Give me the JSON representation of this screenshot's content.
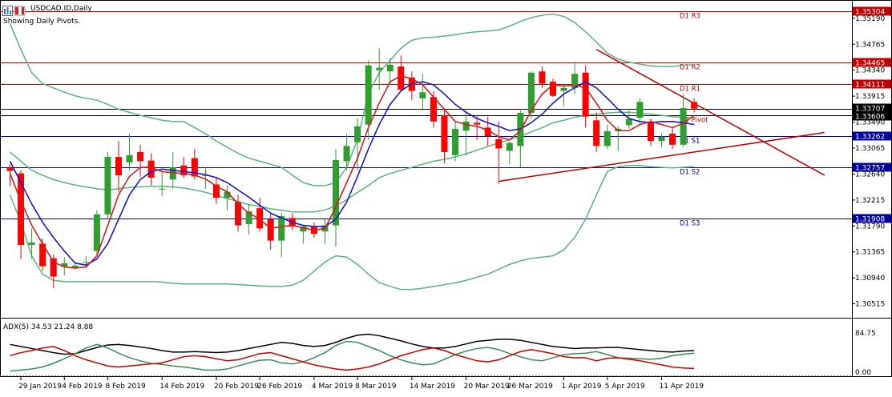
{
  "window": {
    "symbol_title": "USDCAD.ID,Daily",
    "pivot_note": "Showing Daily Pivots."
  },
  "colors": {
    "background": "#ffffff",
    "bull_candle": "#2e9e2e",
    "bear_candle": "#ff0000",
    "bollinger": "#5cb37d",
    "ma_fast": "#d21f1f",
    "ma_slow": "#1a1acc",
    "pivot_lines": "#c00000",
    "support_lines": "#0000a0",
    "trendline": "#c00000",
    "adx_main": "#000000",
    "adx_plus": "#3c8c5a",
    "adx_minus": "#cc0000"
  },
  "icons": [
    "chart-window-icon",
    "flag-icon"
  ],
  "price_axis": {
    "ticks": [
      "1.35190",
      "1.34765",
      "1.34340",
      "1.33915",
      "1.33490",
      "1.33065",
      "1.32640",
      "1.32215",
      "1.31790",
      "1.31365",
      "1.30940",
      "1.30515"
    ],
    "current_price_labels": [
      "1.33707",
      "1.33606"
    ]
  },
  "pivots": [
    {
      "name": "D1 R3",
      "price": 1.35304,
      "label": "1.35304"
    },
    {
      "name": "D1 R2",
      "price": 1.34465,
      "label": "1.34465"
    },
    {
      "name": "D1 R1",
      "price": 1.34111,
      "label": "1.34111"
    },
    {
      "name": "D1 Pivot",
      "price": 1.33606,
      "label": ""
    },
    {
      "name": "D1 S1",
      "price": 1.33262,
      "label": "1.33262"
    },
    {
      "name": "D1 S2",
      "price": 1.32757,
      "label": "1.32757"
    },
    {
      "name": "D1 S3",
      "price": 1.31908,
      "label": "1.31908"
    }
  ],
  "chart_data": {
    "type": "candlestick",
    "symbol": "USDCAD.ID",
    "timeframe": "Daily",
    "ylim": [
      1.303,
      1.3545
    ],
    "candles": [
      {
        "o": 1.3274,
        "h": 1.328,
        "l": 1.3244,
        "c": 1.3269
      },
      {
        "o": 1.3265,
        "h": 1.327,
        "l": 1.3125,
        "c": 1.3148
      },
      {
        "o": 1.3148,
        "h": 1.3175,
        "l": 1.3125,
        "c": 1.3152
      },
      {
        "o": 1.315,
        "h": 1.3158,
        "l": 1.3105,
        "c": 1.3113
      },
      {
        "o": 1.3126,
        "h": 1.3132,
        "l": 1.3077,
        "c": 1.3096
      },
      {
        "o": 1.3112,
        "h": 1.3128,
        "l": 1.3098,
        "c": 1.3118
      },
      {
        "o": 1.311,
        "h": 1.312,
        "l": 1.3108,
        "c": 1.3114
      },
      {
        "o": 1.3119,
        "h": 1.313,
        "l": 1.311,
        "c": 1.312
      },
      {
        "o": 1.3138,
        "h": 1.3205,
        "l": 1.313,
        "c": 1.3198
      },
      {
        "o": 1.3198,
        "h": 1.33,
        "l": 1.319,
        "c": 1.3292
      },
      {
        "o": 1.3292,
        "h": 1.3318,
        "l": 1.3235,
        "c": 1.3262
      },
      {
        "o": 1.3283,
        "h": 1.333,
        "l": 1.327,
        "c": 1.3295
      },
      {
        "o": 1.33,
        "h": 1.3312,
        "l": 1.326,
        "c": 1.3285
      },
      {
        "o": 1.3286,
        "h": 1.3298,
        "l": 1.3245,
        "c": 1.3258
      },
      {
        "o": 1.3239,
        "h": 1.3268,
        "l": 1.3228,
        "c": 1.324
      },
      {
        "o": 1.3255,
        "h": 1.33,
        "l": 1.324,
        "c": 1.3275
      },
      {
        "o": 1.3278,
        "h": 1.3292,
        "l": 1.3258,
        "c": 1.3262
      },
      {
        "o": 1.329,
        "h": 1.3305,
        "l": 1.3255,
        "c": 1.326
      },
      {
        "o": 1.3262,
        "h": 1.3275,
        "l": 1.324,
        "c": 1.3262
      },
      {
        "o": 1.3247,
        "h": 1.326,
        "l": 1.3215,
        "c": 1.3225
      },
      {
        "o": 1.3225,
        "h": 1.3245,
        "l": 1.3205,
        "c": 1.3235
      },
      {
        "o": 1.3218,
        "h": 1.323,
        "l": 1.317,
        "c": 1.318
      },
      {
        "o": 1.3182,
        "h": 1.3215,
        "l": 1.3165,
        "c": 1.3203
      },
      {
        "o": 1.3208,
        "h": 1.3225,
        "l": 1.317,
        "c": 1.3175
      },
      {
        "o": 1.319,
        "h": 1.32,
        "l": 1.314,
        "c": 1.3155
      },
      {
        "o": 1.3155,
        "h": 1.32,
        "l": 1.3128,
        "c": 1.3195
      },
      {
        "o": 1.3192,
        "h": 1.32,
        "l": 1.3172,
        "c": 1.3178
      },
      {
        "o": 1.317,
        "h": 1.318,
        "l": 1.315,
        "c": 1.3178
      },
      {
        "o": 1.3178,
        "h": 1.3185,
        "l": 1.316,
        "c": 1.3166
      },
      {
        "o": 1.317,
        "h": 1.319,
        "l": 1.315,
        "c": 1.318
      },
      {
        "o": 1.318,
        "h": 1.3305,
        "l": 1.3145,
        "c": 1.3287
      },
      {
        "o": 1.3285,
        "h": 1.333,
        "l": 1.327,
        "c": 1.331
      },
      {
        "o": 1.3316,
        "h": 1.3355,
        "l": 1.327,
        "c": 1.3342
      },
      {
        "o": 1.3345,
        "h": 1.345,
        "l": 1.332,
        "c": 1.3442
      },
      {
        "o": 1.3434,
        "h": 1.347,
        "l": 1.3402,
        "c": 1.3438
      },
      {
        "o": 1.3432,
        "h": 1.3454,
        "l": 1.341,
        "c": 1.3443
      },
      {
        "o": 1.344,
        "h": 1.3458,
        "l": 1.34,
        "c": 1.3402
      },
      {
        "o": 1.3422,
        "h": 1.3432,
        "l": 1.3385,
        "c": 1.34
      },
      {
        "o": 1.3388,
        "h": 1.3428,
        "l": 1.3368,
        "c": 1.3398
      },
      {
        "o": 1.339,
        "h": 1.34,
        "l": 1.334,
        "c": 1.335
      },
      {
        "o": 1.336,
        "h": 1.337,
        "l": 1.3282,
        "c": 1.33
      },
      {
        "o": 1.3295,
        "h": 1.335,
        "l": 1.3285,
        "c": 1.3338
      },
      {
        "o": 1.3335,
        "h": 1.3368,
        "l": 1.3295,
        "c": 1.335
      },
      {
        "o": 1.3348,
        "h": 1.336,
        "l": 1.332,
        "c": 1.3345
      },
      {
        "o": 1.334,
        "h": 1.3358,
        "l": 1.331,
        "c": 1.3326
      },
      {
        "o": 1.3321,
        "h": 1.335,
        "l": 1.3248,
        "c": 1.3306
      },
      {
        "o": 1.3302,
        "h": 1.3318,
        "l": 1.328,
        "c": 1.3315
      },
      {
        "o": 1.331,
        "h": 1.3368,
        "l": 1.3275,
        "c": 1.3364
      },
      {
        "o": 1.3364,
        "h": 1.3432,
        "l": 1.3355,
        "c": 1.343
      },
      {
        "o": 1.3432,
        "h": 1.344,
        "l": 1.3405,
        "c": 1.3412
      },
      {
        "o": 1.3415,
        "h": 1.342,
        "l": 1.339,
        "c": 1.3392
      },
      {
        "o": 1.34,
        "h": 1.341,
        "l": 1.3375,
        "c": 1.3405
      },
      {
        "o": 1.3405,
        "h": 1.3448,
        "l": 1.3395,
        "c": 1.3428
      },
      {
        "o": 1.343,
        "h": 1.3442,
        "l": 1.334,
        "c": 1.3358
      },
      {
        "o": 1.3352,
        "h": 1.3365,
        "l": 1.33,
        "c": 1.331
      },
      {
        "o": 1.331,
        "h": 1.3345,
        "l": 1.3305,
        "c": 1.3334
      },
      {
        "o": 1.3334,
        "h": 1.3342,
        "l": 1.3302,
        "c": 1.3338
      },
      {
        "o": 1.3344,
        "h": 1.3368,
        "l": 1.3338,
        "c": 1.3354
      },
      {
        "o": 1.3356,
        "h": 1.3388,
        "l": 1.3345,
        "c": 1.3382
      },
      {
        "o": 1.335,
        "h": 1.3355,
        "l": 1.331,
        "c": 1.3318
      },
      {
        "o": 1.3318,
        "h": 1.333,
        "l": 1.3308,
        "c": 1.3325
      },
      {
        "o": 1.333,
        "h": 1.334,
        "l": 1.3305,
        "c": 1.3312
      },
      {
        "o": 1.3312,
        "h": 1.3395,
        "l": 1.3308,
        "c": 1.3372
      },
      {
        "o": 1.3382,
        "h": 1.3388,
        "l": 1.3365,
        "c": 1.3371
      }
    ],
    "bollinger": {
      "upper": [
        1.351,
        1.3468,
        1.343,
        1.3412,
        1.3405,
        1.3398,
        1.3392,
        1.3388,
        1.3385,
        1.3378,
        1.337,
        1.3365,
        1.336,
        1.3356,
        1.3352,
        1.335,
        1.335,
        1.334,
        1.333,
        1.3318,
        1.3308,
        1.3298,
        1.329,
        1.3285,
        1.328,
        1.3275,
        1.3262,
        1.325,
        1.3245,
        1.3245,
        1.325,
        1.3275,
        1.332,
        1.3395,
        1.343,
        1.345,
        1.347,
        1.3483,
        1.3487,
        1.3488,
        1.349,
        1.3492,
        1.3495,
        1.3497,
        1.3498,
        1.35,
        1.3506,
        1.3514,
        1.352,
        1.3524,
        1.3526,
        1.3522,
        1.3512,
        1.3497,
        1.348,
        1.3462,
        1.3452,
        1.3447,
        1.3444,
        1.3441,
        1.344,
        1.344,
        1.3442,
        1.3443
      ],
      "middle": [
        1.33,
        1.3285,
        1.327,
        1.3262,
        1.3255,
        1.325,
        1.3246,
        1.3243,
        1.324,
        1.3238,
        1.324,
        1.3242,
        1.3243,
        1.3244,
        1.3244,
        1.3243,
        1.3241,
        1.3238,
        1.3234,
        1.3229,
        1.3224,
        1.3219,
        1.3214,
        1.3211,
        1.3207,
        1.3205,
        1.3202,
        1.3202,
        1.3202,
        1.3205,
        1.3212,
        1.3222,
        1.3234,
        1.3245,
        1.3258,
        1.3265,
        1.327,
        1.3275,
        1.328,
        1.3285,
        1.3288,
        1.3292,
        1.3297,
        1.3303,
        1.3309,
        1.3315,
        1.332,
        1.3326,
        1.3333,
        1.334,
        1.3348,
        1.3352,
        1.3357,
        1.336,
        1.3362,
        1.3364,
        1.3365,
        1.3365,
        1.3364,
        1.3362,
        1.336,
        1.3358,
        1.3357,
        1.3356
      ],
      "lower": [
        1.323,
        1.3185,
        1.313,
        1.31,
        1.309,
        1.3088,
        1.3088,
        1.3088,
        1.3088,
        1.3088,
        1.3088,
        1.3088,
        1.3088,
        1.3088,
        1.3087,
        1.3085,
        1.3084,
        1.3084,
        1.3084,
        1.3084,
        1.3084,
        1.3083,
        1.3082,
        1.3081,
        1.308,
        1.308,
        1.3082,
        1.309,
        1.3105,
        1.312,
        1.313,
        1.3128,
        1.3116,
        1.31,
        1.3086,
        1.308,
        1.3075,
        1.3075,
        1.3077,
        1.308,
        1.3083,
        1.3086,
        1.309,
        1.3095,
        1.31,
        1.3108,
        1.3116,
        1.3122,
        1.3126,
        1.3128,
        1.313,
        1.314,
        1.316,
        1.319,
        1.323,
        1.3268,
        1.3276,
        1.3278,
        1.3278,
        1.3276,
        1.3275,
        1.3274,
        1.3275,
        1.3276
      ]
    },
    "ma_fast": [
      1.3265,
      1.322,
      1.318,
      1.315,
      1.312,
      1.3112,
      1.311,
      1.3112,
      1.313,
      1.318,
      1.323,
      1.326,
      1.3275,
      1.3275,
      1.3268,
      1.3266,
      1.3265,
      1.3262,
      1.3256,
      1.3244,
      1.3235,
      1.3215,
      1.32,
      1.319,
      1.3175,
      1.3178,
      1.318,
      1.3176,
      1.3172,
      1.3175,
      1.321,
      1.325,
      1.329,
      1.334,
      1.338,
      1.3415,
      1.3425,
      1.342,
      1.341,
      1.339,
      1.337,
      1.335,
      1.3345,
      1.3342,
      1.3336,
      1.3325,
      1.332,
      1.3335,
      1.3368,
      1.3395,
      1.341,
      1.3408,
      1.341,
      1.3405,
      1.338,
      1.3352,
      1.3335,
      1.3335,
      1.3345,
      1.335,
      1.3345,
      1.334,
      1.3347,
      1.336
    ],
    "ma_slow": [
      1.3285,
      1.325,
      1.3215,
      1.3185,
      1.316,
      1.3138,
      1.3118,
      1.3115,
      1.3125,
      1.315,
      1.319,
      1.323,
      1.3255,
      1.3268,
      1.3272,
      1.327,
      1.3268,
      1.3266,
      1.3263,
      1.3258,
      1.325,
      1.3238,
      1.3226,
      1.3213,
      1.32,
      1.3192,
      1.3185,
      1.318,
      1.3178,
      1.3178,
      1.319,
      1.3218,
      1.326,
      1.3305,
      1.3345,
      1.3378,
      1.34,
      1.3412,
      1.3415,
      1.341,
      1.3395,
      1.3378,
      1.3365,
      1.3355,
      1.3348,
      1.3342,
      1.3335,
      1.3338,
      1.3348,
      1.3362,
      1.338,
      1.3395,
      1.3405,
      1.3415,
      1.3405,
      1.3388,
      1.337,
      1.3355,
      1.335,
      1.3348,
      1.335,
      1.335,
      1.3348,
      1.3345
    ],
    "trendlines": [
      {
        "from": {
          "i": 45,
          "p": 1.3252
        },
        "to": {
          "i": 75,
          "p": 1.3332
        }
      },
      {
        "from": {
          "i": 54,
          "p": 1.3468
        },
        "to": {
          "i": 75,
          "p": 1.3262
        }
      }
    ],
    "x_labels": [
      {
        "i": 1,
        "label": "29 Jan 2019"
      },
      {
        "i": 5,
        "label": "4 Feb 2019"
      },
      {
        "i": 9,
        "label": "8 Feb 2019"
      },
      {
        "i": 14,
        "label": "14 Feb 2019"
      },
      {
        "i": 19,
        "label": "20 Feb 2019"
      },
      {
        "i": 23,
        "label": "26 Feb 2019"
      },
      {
        "i": 28,
        "label": "4 Mar 2019"
      },
      {
        "i": 32,
        "label": "8 Mar 2019"
      },
      {
        "i": 37,
        "label": "14 Mar 2019"
      },
      {
        "i": 42,
        "label": "20 Mar 2019"
      },
      {
        "i": 46,
        "label": "26 Mar 2019"
      },
      {
        "i": 51,
        "label": "1 Apr 2019"
      },
      {
        "i": 55,
        "label": "5 Apr 2019"
      },
      {
        "i": 60,
        "label": "11 Apr 2019"
      }
    ],
    "adx": {
      "header": "ADX(5) 34.53 21.24 8.88",
      "ylim": [
        0,
        100
      ],
      "ticks": [
        "84.75",
        "0.00"
      ],
      "main": [
        62,
        58,
        54,
        50,
        46,
        43,
        44,
        50,
        56,
        61,
        62,
        60,
        57,
        54,
        50,
        47,
        47,
        48,
        47,
        46,
        47,
        50,
        54,
        58,
        62,
        66,
        64,
        60,
        58,
        60,
        66,
        74,
        80,
        82,
        79,
        74,
        69,
        63,
        58,
        55,
        55,
        58,
        63,
        68,
        70,
        72,
        72,
        70,
        66,
        62,
        58,
        56,
        54,
        55,
        55,
        56,
        56,
        54,
        52,
        50,
        48,
        47,
        49,
        50
      ],
      "plus": [
        10,
        12,
        14,
        18,
        25,
        34,
        44,
        55,
        62,
        55,
        45,
        36,
        30,
        25,
        23,
        20,
        18,
        15,
        12,
        12,
        14,
        20,
        26,
        31,
        32,
        26,
        24,
        28,
        36,
        46,
        60,
        68,
        66,
        58,
        50,
        40,
        32,
        26,
        22,
        24,
        33,
        42,
        49,
        54,
        56,
        52,
        44,
        38,
        32,
        30,
        36,
        42,
        44,
        45,
        48,
        42,
        36,
        35,
        34,
        33,
        35,
        40,
        43,
        45
      ],
      "minus": [
        40,
        46,
        50,
        55,
        58,
        50,
        40,
        32,
        26,
        20,
        18,
        20,
        22,
        24,
        26,
        32,
        38,
        40,
        38,
        34,
        30,
        32,
        38,
        44,
        46,
        40,
        34,
        28,
        22,
        18,
        14,
        12,
        14,
        18,
        24,
        32,
        40,
        46,
        52,
        55,
        50,
        42,
        36,
        30,
        28,
        32,
        40,
        48,
        52,
        48,
        44,
        38,
        36,
        36,
        30,
        35,
        36,
        33,
        30,
        26,
        22,
        18,
        16,
        15
      ]
    }
  }
}
